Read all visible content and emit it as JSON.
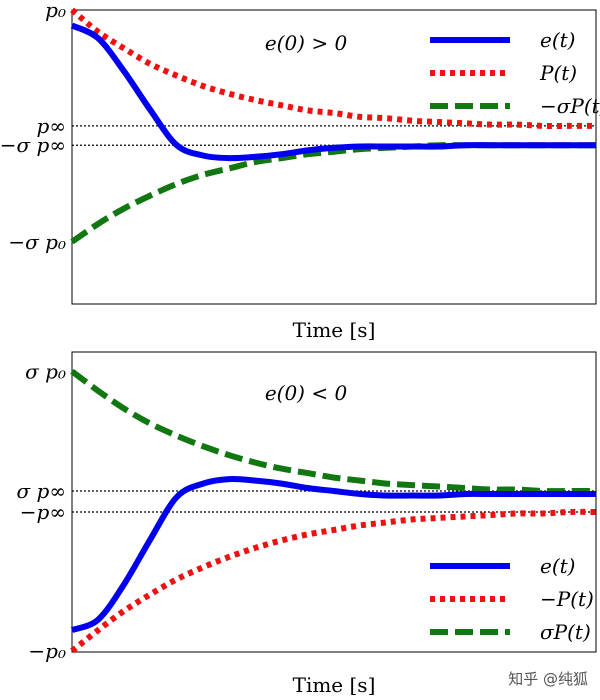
{
  "chart_data": [
    {
      "type": "line",
      "annotation": "e(0) > 0",
      "xlabel": "Time [s]",
      "ylabel": "",
      "xlim": [
        0,
        10
      ],
      "ylim": [
        -1.05,
        1.0
      ],
      "yticks": [
        {
          "value": 1.0,
          "label": "p₀"
        },
        {
          "value": 0.1,
          "label": "p∞"
        },
        {
          "value": -0.05,
          "label": "−σ p∞"
        },
        {
          "value": -0.8,
          "label": "−σ p₀"
        }
      ],
      "reference_lines": [
        0.1,
        -0.05
      ],
      "x": [
        0,
        0.5,
        1,
        1.5,
        2,
        2.5,
        3,
        3.5,
        4,
        4.5,
        5,
        5.5,
        6,
        6.5,
        7,
        7.5,
        8,
        8.5,
        9,
        9.5,
        10
      ],
      "series": [
        {
          "name": "e(t)",
          "style": "solid",
          "color": "#0000ee",
          "values": [
            0.88,
            0.78,
            0.52,
            0.22,
            -0.05,
            -0.13,
            -0.15,
            -0.14,
            -0.12,
            -0.09,
            -0.07,
            -0.06,
            -0.06,
            -0.06,
            -0.06,
            -0.05,
            -0.05,
            -0.05,
            -0.05,
            -0.05,
            -0.05
          ]
        },
        {
          "name": "P(t)",
          "style": "dotted",
          "color": "#ee1111",
          "values": [
            1.0,
            0.83,
            0.7,
            0.58,
            0.49,
            0.41,
            0.35,
            0.3,
            0.26,
            0.22,
            0.2,
            0.17,
            0.16,
            0.14,
            0.13,
            0.12,
            0.11,
            0.11,
            0.1,
            0.1,
            0.1
          ]
        },
        {
          "name": "−σP(t)",
          "style": "dashed",
          "color": "#117711",
          "values": [
            -0.8,
            -0.66,
            -0.54,
            -0.44,
            -0.35,
            -0.28,
            -0.23,
            -0.18,
            -0.15,
            -0.12,
            -0.1,
            -0.08,
            -0.07,
            -0.06,
            -0.05,
            -0.05,
            -0.05,
            -0.05,
            -0.05,
            -0.05,
            -0.05
          ]
        }
      ]
    },
    {
      "type": "line",
      "annotation": "e(0) < 0",
      "xlabel": "Time [s]",
      "ylabel": "",
      "xlim": [
        0,
        10
      ],
      "ylim": [
        -1.0,
        1.0
      ],
      "yticks": [
        {
          "value": 0.87,
          "label": "σ p₀"
        },
        {
          "value": 0.07,
          "label": "σ p∞"
        },
        {
          "value": -0.07,
          "label": "−p∞"
        },
        {
          "value": -1.0,
          "label": "−p₀"
        }
      ],
      "reference_lines": [
        0.07,
        -0.07
      ],
      "x": [
        0,
        0.5,
        1,
        1.5,
        2,
        2.5,
        3,
        3.5,
        4,
        4.5,
        5,
        5.5,
        6,
        6.5,
        7,
        7.5,
        8,
        8.5,
        9,
        9.5,
        10
      ],
      "series": [
        {
          "name": "e(t)",
          "style": "solid",
          "color": "#0000ee",
          "values": [
            -0.86,
            -0.79,
            -0.55,
            -0.25,
            0.03,
            0.12,
            0.15,
            0.14,
            0.12,
            0.09,
            0.07,
            0.05,
            0.04,
            0.04,
            0.04,
            0.05,
            0.05,
            0.05,
            0.05,
            0.05,
            0.05
          ]
        },
        {
          "name": "−P(t)",
          "style": "dotted",
          "color": "#ee1111",
          "values": [
            -1.0,
            -0.86,
            -0.73,
            -0.62,
            -0.52,
            -0.44,
            -0.37,
            -0.31,
            -0.26,
            -0.22,
            -0.19,
            -0.16,
            -0.14,
            -0.12,
            -0.11,
            -0.1,
            -0.09,
            -0.08,
            -0.08,
            -0.07,
            -0.07
          ]
        },
        {
          "name": "σP(t)",
          "style": "dashed",
          "color": "#117711",
          "values": [
            0.87,
            0.74,
            0.62,
            0.52,
            0.44,
            0.37,
            0.31,
            0.26,
            0.22,
            0.19,
            0.16,
            0.14,
            0.12,
            0.11,
            0.1,
            0.09,
            0.08,
            0.08,
            0.07,
            0.07,
            0.07
          ]
        }
      ]
    }
  ],
  "watermark": "知乎 @纯狐"
}
